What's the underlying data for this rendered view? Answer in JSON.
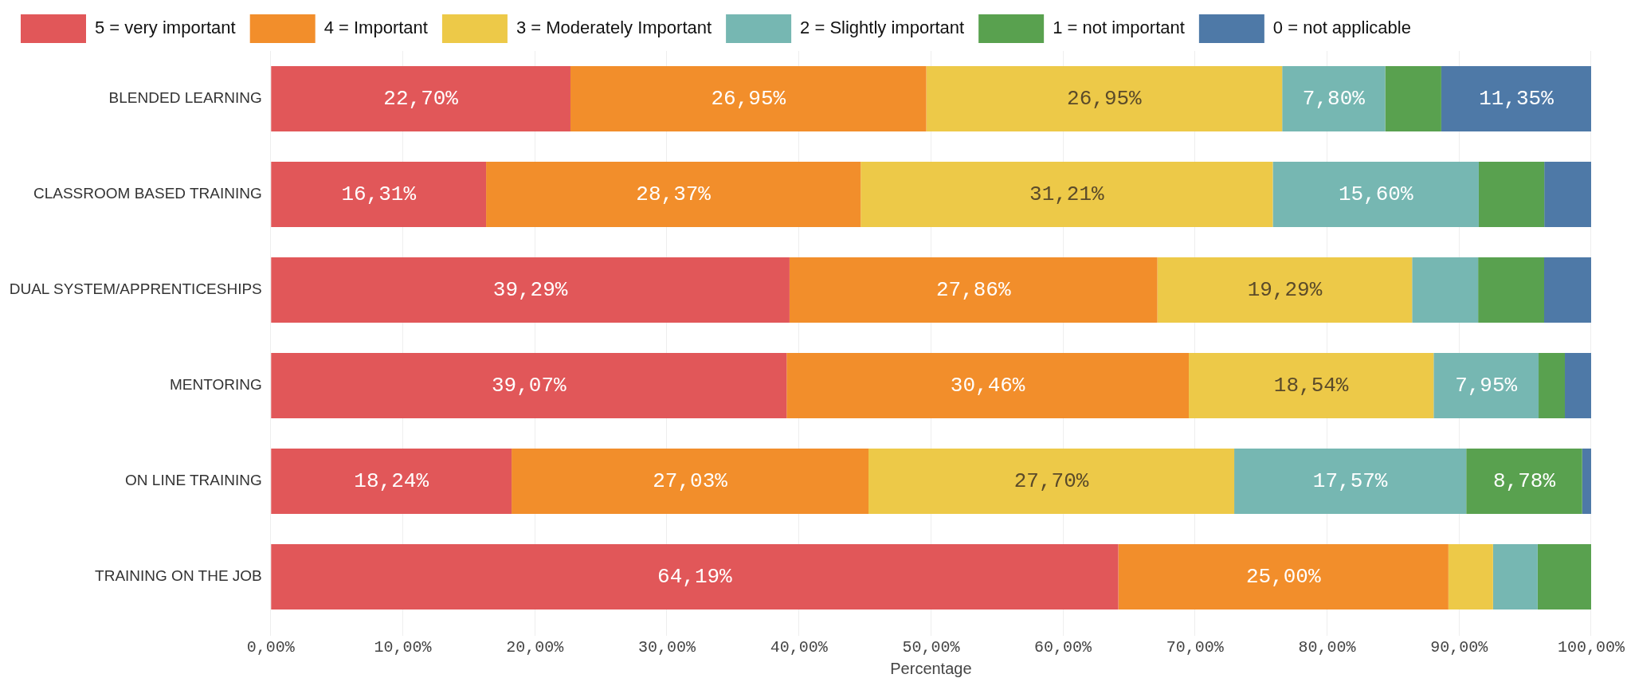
{
  "chart_data": {
    "type": "bar",
    "orientation": "horizontal",
    "stacked": true,
    "xlabel": "Percentage",
    "categories": [
      "BLENDED LEARNING",
      "CLASSROOM BASED TRAINING",
      "DUAL SYSTEM/APPRENTICESHIPS",
      "MENTORING",
      "ON LINE TRAINING",
      "TRAINING ON THE JOB"
    ],
    "series": [
      {
        "name": "5 = very important",
        "color": "#e15759",
        "values": [
          22.7,
          16.31,
          39.29,
          39.07,
          18.24,
          64.19
        ],
        "value_labels": [
          "22,70%",
          "16,31%",
          "39,29%",
          "39,07%",
          "18,24%",
          "64,19%"
        ]
      },
      {
        "name": "4 = Important",
        "color": "#f28e2b",
        "values": [
          26.95,
          28.37,
          27.86,
          30.46,
          27.03,
          25.0
        ],
        "value_labels": [
          "26,95%",
          "28,37%",
          "27,86%",
          "30,46%",
          "27,03%",
          "25,00%"
        ]
      },
      {
        "name": "3 = Moderately Important",
        "color": "#edc948",
        "values": [
          26.95,
          31.21,
          19.29,
          18.54,
          27.7,
          3.38
        ],
        "value_labels": [
          "26,95%",
          "31,21%",
          "19,29%",
          "18,54%",
          "27,70%",
          null
        ]
      },
      {
        "name": "2 = Slightly important",
        "color": "#76b7b2",
        "values": [
          7.8,
          15.6,
          5.0,
          7.95,
          17.57,
          3.38
        ],
        "value_labels": [
          "7,80%",
          "15,60%",
          null,
          "7,95%",
          "17,57%",
          null
        ]
      },
      {
        "name": "1 = not important",
        "color": "#59a14f",
        "values": [
          4.25,
          4.96,
          5.0,
          1.99,
          8.78,
          4.05
        ],
        "value_labels": [
          null,
          null,
          null,
          null,
          "8,78%",
          null
        ]
      },
      {
        "name": "0 = not applicable",
        "color": "#4e79a7",
        "values": [
          11.35,
          3.55,
          3.57,
          1.99,
          0.68,
          0
        ],
        "value_labels": [
          "11,35%",
          null,
          null,
          null,
          null,
          null
        ]
      }
    ],
    "xlim": [
      0,
      100
    ],
    "xticks": [
      {
        "value": 0,
        "label": "0,00%"
      },
      {
        "value": 10,
        "label": "10,00%"
      },
      {
        "value": 20,
        "label": "20,00%"
      },
      {
        "value": 30,
        "label": "30,00%"
      },
      {
        "value": 40,
        "label": "40,00%"
      },
      {
        "value": 50,
        "label": "50,00%"
      },
      {
        "value": 60,
        "label": "60,00%"
      },
      {
        "value": 70,
        "label": "70,00%"
      },
      {
        "value": 80,
        "label": "80,00%"
      },
      {
        "value": 90,
        "label": "90,00%"
      },
      {
        "value": 100,
        "label": "100,00%"
      }
    ],
    "grid": "x",
    "legend": "top"
  }
}
